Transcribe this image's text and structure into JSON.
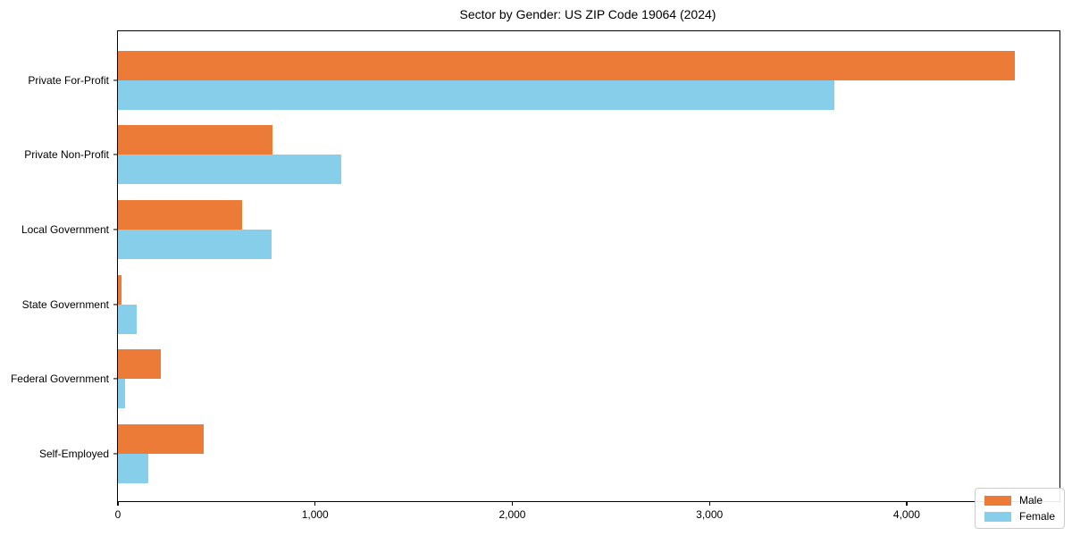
{
  "figure": {
    "title": "Sector by Gender: US ZIP Code 19064 (2024)"
  },
  "chart_data": {
    "type": "bar",
    "orientation": "horizontal",
    "title": "Sector by Gender: US ZIP Code 19064 (2024)",
    "categories": [
      "Private For-Profit",
      "Private Non-Profit",
      "Local Government",
      "State Government",
      "Federal Government",
      "Self-Employed"
    ],
    "series": [
      {
        "name": "Male",
        "color": "#EC7B37",
        "values": [
          4548,
          784,
          630,
          20,
          217,
          433
        ]
      },
      {
        "name": "Female",
        "color": "#87CEEB",
        "values": [
          3632,
          1132,
          779,
          97,
          38,
          155
        ]
      }
    ],
    "xlabel": "",
    "ylabel": "",
    "xlim": [
      0,
      4775
    ],
    "xticks": [
      0,
      1000,
      2000,
      3000,
      4000
    ],
    "xtick_labels": [
      "0",
      "1,000",
      "2,000",
      "3,000",
      "4,000"
    ],
    "grid": false,
    "legend_position": "lower right",
    "axis_color": "#000000",
    "background_color": "#ffffff"
  }
}
